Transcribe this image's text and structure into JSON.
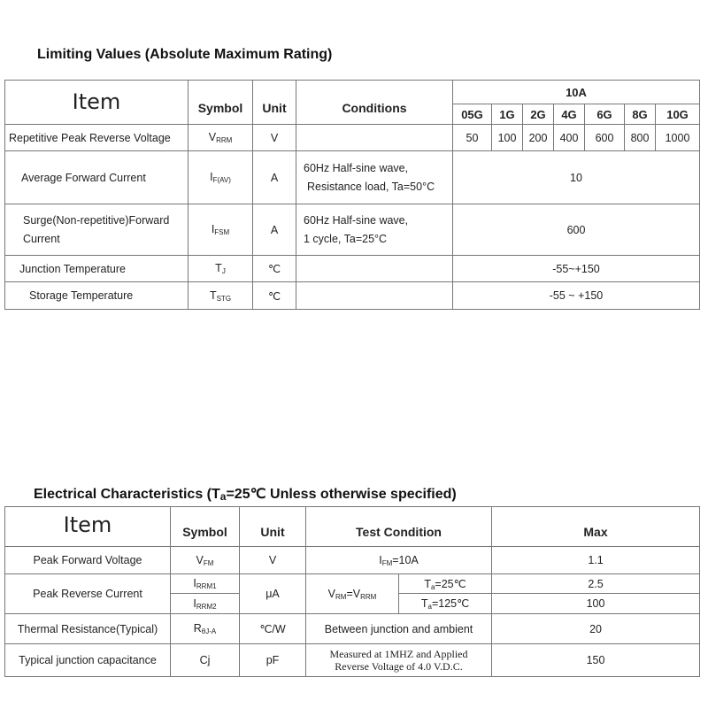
{
  "limiting": {
    "title": "Limiting Values (Absolute Maximum Rating)",
    "headers": {
      "item": "Item",
      "symbol": "Symbol",
      "unit": "Unit",
      "conditions": "Conditions",
      "group": "10A"
    },
    "grades": [
      "05G",
      "1G",
      "2G",
      "4G",
      "6G",
      "8G",
      "10G"
    ],
    "rows": [
      {
        "item": "Repetitive Peak Reverse Voltage",
        "sym": "V",
        "sub": "RRM",
        "unit": "V",
        "cond": [
          "",
          ""
        ],
        "values": [
          "50",
          "100",
          "200",
          "400",
          "600",
          "800",
          "1000"
        ]
      },
      {
        "item": "Average Forward Current",
        "sym": "I",
        "sub": "F(AV)",
        "unit": "A",
        "cond": [
          "60Hz  Half-sine  wave,",
          "Resistance  load, Ta=50°C"
        ],
        "value": "10"
      },
      {
        "item": "Surge(Non-repetitive)Forward Current",
        "sym": "I",
        "sub": "FSM",
        "unit": "A",
        "cond": [
          "60Hz   Half-sine   wave,",
          "1 cycle,    Ta=25°C"
        ],
        "value": "600"
      },
      {
        "item": "Junction    Temperature",
        "sym": "T",
        "sub": "J",
        "unit": "℃",
        "cond": [
          "",
          ""
        ],
        "value": "-55~+150"
      },
      {
        "item": "Storage Temperature",
        "sym": "T",
        "sub": "STG",
        "unit": "℃",
        "cond": [
          "",
          ""
        ],
        "value": "-55 ~ +150"
      }
    ]
  },
  "electrical": {
    "title_pre": "Electrical Characteristics (T",
    "title_sub": "a",
    "title_post": "=25℃ Unless otherwise specified)",
    "headers": {
      "item": "Item",
      "symbol": "Symbol",
      "unit": "Unit",
      "test": "Test Condition",
      "max": "Max"
    },
    "rows": {
      "vf": {
        "item": "Peak Forward Voltage",
        "sym": "V",
        "sub": "FM",
        "unit": "V",
        "cond_sym": "I",
        "cond_sub": "FM",
        "cond_post": "=10A",
        "max": "1.1"
      },
      "ir": {
        "item": "Peak Reverse Current",
        "sym1": "I",
        "sub1": "RRM1",
        "sym2": "I",
        "sub2": "RRM2",
        "unit": "μA",
        "cond_a": "V",
        "cond_a_sub": "RM",
        "cond_b": "=V",
        "cond_b_sub": "RRM",
        "t1_pre": "T",
        "t1_sub": "a",
        "t1_post": "=25℃",
        "t2_pre": "T",
        "t2_sub": "a",
        "t2_post": "=125℃",
        "max1": "2.5",
        "max2": "100"
      },
      "rth": {
        "item": "Thermal Resistance(Typical)",
        "sym": "R",
        "sub": "θJ-A",
        "unit": "℃/W",
        "cond": "Between junction and ambient",
        "max": "20"
      },
      "cj": {
        "item": "Typical junction capacitance",
        "sym": "Cj",
        "unit": "pF",
        "cond1": "Measured at 1MHZ and Applied",
        "cond2": "Reverse Voltage of 4.0 V.D.C.",
        "max": "150"
      }
    }
  }
}
